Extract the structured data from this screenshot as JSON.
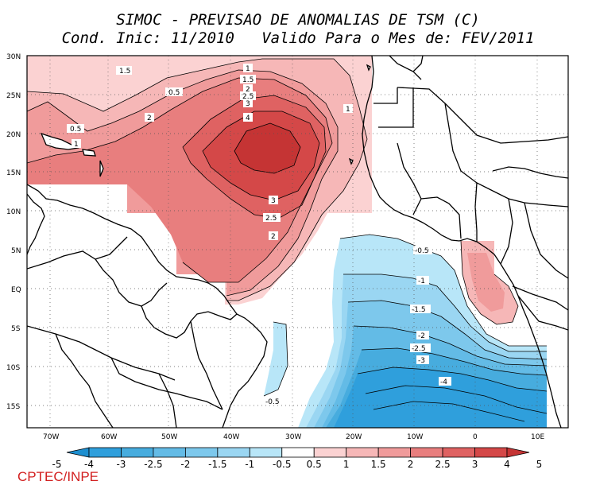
{
  "title": {
    "line1": "SIMOC - PREVISAO DE ANOMALIAS DE TSM (C)",
    "line2": "Cond. Inic: 11/2010   Valido Para o Mes de: FEV/2011"
  },
  "credit": "CPTEC/INPE",
  "axes": {
    "lat_labels": [
      "30N",
      "25N",
      "20N",
      "15N",
      "10N",
      "5N",
      "EQ",
      "5S",
      "10S",
      "15S"
    ],
    "lon_labels": [
      "70W",
      "60W",
      "50W",
      "40W",
      "30W",
      "20W",
      "10W",
      "0",
      "10E"
    ]
  },
  "contour_labels": {
    "l_1_5_nw": "1.5",
    "l_0_5_n": "0.5",
    "l_0_5_w": "0.5",
    "l_1_w": "1",
    "l_2_w": "2",
    "l_1_top": "1",
    "l_1_5_top": "1.5",
    "l_2_top": "2",
    "l_2_5_top": "2.5",
    "l_3_top": "3",
    "l_4_c": "4",
    "l_1_e": "1",
    "l_3_s": "3",
    "l_2_5_s": "2.5",
    "l_2_s": "2",
    "n_0_5_e": "-0.5",
    "n_1": "-1",
    "n_1_5": "-1.5",
    "n_2": "-2",
    "n_2_5": "-2.5",
    "n_3": "-3",
    "n_4": "-4",
    "n_0_5_w": "-0.5"
  },
  "colorbar": {
    "labels": [
      "-5",
      "-4",
      "-3",
      "-2.5",
      "-2",
      "-1.5",
      "-1",
      "-0.5",
      "0.5",
      "1",
      "1.5",
      "2",
      "2.5",
      "3",
      "4",
      "5"
    ],
    "colors": [
      "#1d8fd0",
      "#2f9fdc",
      "#47acde",
      "#63bbe6",
      "#7dc8ec",
      "#9ad6f2",
      "#b8e6f8",
      "#ffffff",
      "#fbd2d2",
      "#f6b7b7",
      "#f09b9b",
      "#e87e7e",
      "#df6262",
      "#d44848",
      "#c53434"
    ]
  },
  "colors": {
    "frame": "#000000",
    "pos_1": "#fbd2d2",
    "pos_2": "#f6b7b7",
    "pos_3": "#f09b9b",
    "pos_4": "#e87e7e",
    "pos_5": "#df6262",
    "pos_6": "#d44848",
    "pos_7": "#c53434",
    "neg_1": "#b8e6f8",
    "neg_2": "#9ad6f2",
    "neg_3": "#7dc8ec",
    "neg_4": "#63bbe6",
    "neg_5": "#47acde",
    "neg_6": "#2f9fdc"
  }
}
